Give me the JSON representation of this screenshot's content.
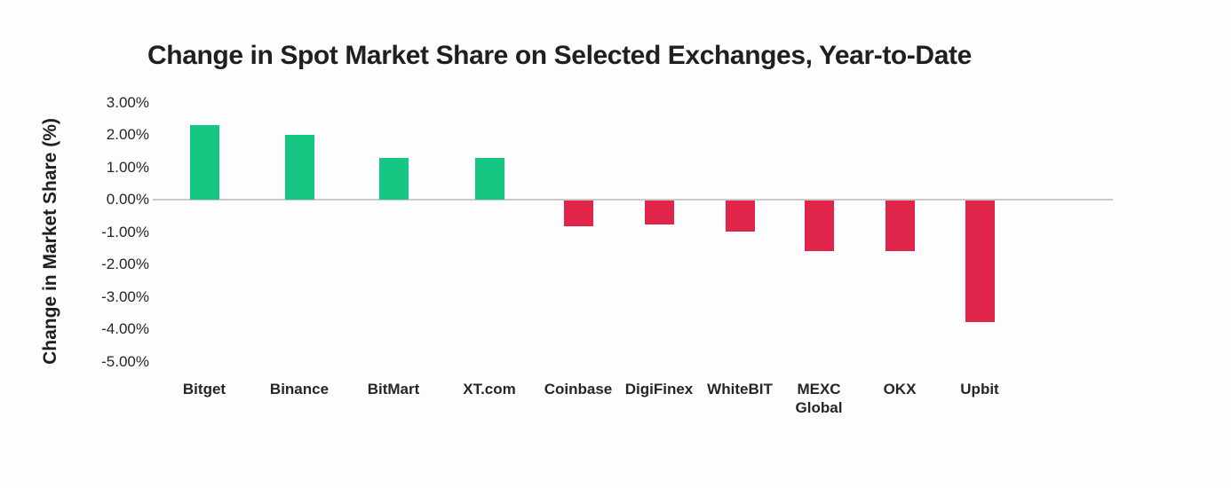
{
  "chart_data": {
    "type": "bar",
    "title": "Change in Spot Market Share on Selected Exchanges, Year-to-Date",
    "xlabel": "",
    "ylabel": "Change in Market Share (%)",
    "categories": [
      "Bitget",
      "Binance",
      "BitMart",
      "XT.com",
      "Coinbase",
      "DigiFinex",
      "WhiteBIT",
      "MEXC Global",
      "OKX",
      "Upbit"
    ],
    "values": [
      2.3,
      2.0,
      1.3,
      1.3,
      -0.8,
      -0.75,
      -0.95,
      -1.55,
      -1.55,
      -3.75
    ],
    "unit": "%",
    "y_ticks": [
      {
        "value": 3,
        "label": "3.00%"
      },
      {
        "value": 2,
        "label": "2.00%"
      },
      {
        "value": 1,
        "label": "1.00%"
      },
      {
        "value": 0,
        "label": "0.00%"
      },
      {
        "value": -1,
        "label": "-1.00%"
      },
      {
        "value": -2,
        "label": "-2.00%"
      },
      {
        "value": -3,
        "label": "-3.00%"
      },
      {
        "value": -4,
        "label": "-4.00%"
      },
      {
        "value": -5,
        "label": "-5.00%"
      }
    ],
    "ylim": [
      -5.5,
      3.4
    ],
    "grid": false,
    "legend": null,
    "colors": {
      "positive_bar": "#16C784",
      "negative_bar": "#E0244A",
      "axis_line": "#C9C9C9",
      "text": "#1F1F1F"
    }
  }
}
